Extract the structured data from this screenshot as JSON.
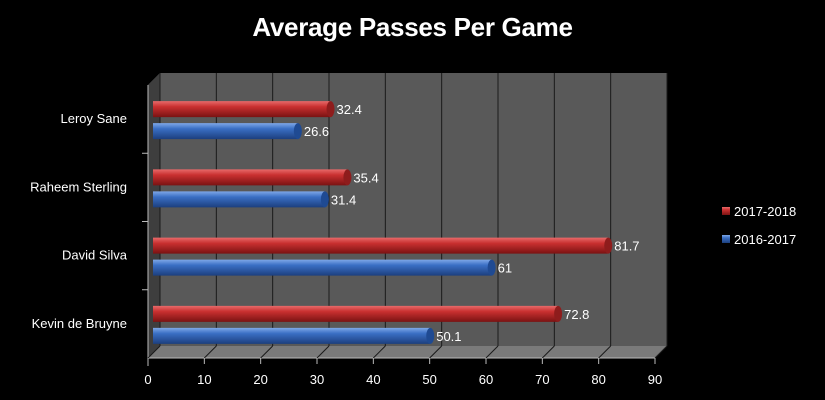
{
  "chart_data": {
    "type": "bar",
    "orientation": "horizontal",
    "title": "Average Passes Per Game",
    "categories": [
      "Kevin de Bruyne",
      "David Silva",
      "Raheem Sterling",
      "Leroy Sane"
    ],
    "series": [
      {
        "name": "2016-2017",
        "values": [
          50.1,
          61,
          31.4,
          26.6
        ],
        "color": "#3a6fc4",
        "labels": [
          "50.1",
          "61",
          "31.4",
          "26.6"
        ]
      },
      {
        "name": "2017-2018",
        "values": [
          72.8,
          81.7,
          35.4,
          32.4
        ],
        "color": "#c0282a",
        "labels": [
          "72.8",
          "81.7",
          "35.4",
          "32.4"
        ]
      }
    ],
    "xlim": [
      0,
      90
    ],
    "xticks": [
      "0",
      "10",
      "20",
      "30",
      "40",
      "50",
      "60",
      "70",
      "80",
      "90"
    ],
    "grid": true,
    "legend_position": "right",
    "legend_order": [
      "2017-2018",
      "2016-2017"
    ],
    "background": "#000000",
    "plot_wall": "#595959",
    "plot_floor": "#7a7a7a"
  }
}
